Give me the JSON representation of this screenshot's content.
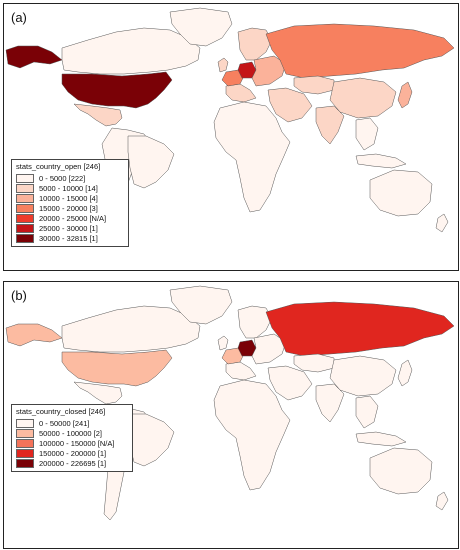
{
  "maps": [
    {
      "label": "(a)",
      "legend_title": "stats_country_open [246]",
      "legend": [
        {
          "label": "0 - 5000 [222]",
          "color": "#fff5f0"
        },
        {
          "label": "5000 - 10000 [14]",
          "color": "#fcd6c6"
        },
        {
          "label": "10000 - 15000 [4]",
          "color": "#fbb29a"
        },
        {
          "label": "15000 - 20000 [3]",
          "color": "#f7805f"
        },
        {
          "label": "20000 - 25000 [N/A]",
          "color": "#ee3b2b"
        },
        {
          "label": "25000 - 30000 [1]",
          "color": "#c41518"
        },
        {
          "label": "30000 - 32815 [1]",
          "color": "#7a0106"
        }
      ],
      "countries": {
        "usa": "#7a0106",
        "canada": "#fff5f0",
        "alaska": "#7a0106",
        "mexico": "#fcd6c6",
        "south_america": "#fff5f0",
        "brazil": "#fff5f0",
        "greenland": "#fff5f0",
        "uk": "#fcd6c6",
        "scandinavia": "#fcd6c6",
        "germany": "#c41518",
        "france": "#f7805f",
        "west_europe": "#fcd6c6",
        "east_europe": "#fbb29a",
        "russia": "#f7805f",
        "middle_east": "#fcd6c6",
        "africa": "#fff5f0",
        "kazakhstan": "#fcd6c6",
        "china": "#fcd6c6",
        "india": "#fcd6c6",
        "southeast_asia": "#fff5f0",
        "japan": "#fbb29a",
        "indonesia": "#fff5f0",
        "australia": "#fff5f0",
        "new_zealand": "#fff5f0"
      }
    },
    {
      "label": "(b)",
      "legend_title": "stats_country_closed [246]",
      "legend": [
        {
          "label": "0 - 50000 [241]",
          "color": "#fff5f0"
        },
        {
          "label": "50000 - 100000 [2]",
          "color": "#fcbba1"
        },
        {
          "label": "100000 - 150000 [N/A]",
          "color": "#f4735a"
        },
        {
          "label": "150000 - 200000 [1]",
          "color": "#e0261f"
        },
        {
          "label": "200000 - 226695 [1]",
          "color": "#7a0106"
        }
      ],
      "countries": {
        "usa": "#fcbba1",
        "canada": "#fff5f0",
        "alaska": "#fcbba1",
        "mexico": "#fff5f0",
        "south_america": "#fff5f0",
        "brazil": "#fff5f0",
        "greenland": "#fff5f0",
        "uk": "#fff5f0",
        "scandinavia": "#fff5f0",
        "germany": "#7a0106",
        "france": "#fcbba1",
        "west_europe": "#fff5f0",
        "east_europe": "#fff5f0",
        "russia": "#e0261f",
        "middle_east": "#fff5f0",
        "africa": "#fff5f0",
        "kazakhstan": "#fff5f0",
        "china": "#fff5f0",
        "india": "#fff5f0",
        "southeast_asia": "#fff5f0",
        "japan": "#fff5f0",
        "indonesia": "#fff5f0",
        "australia": "#fff5f0",
        "new_zealand": "#fff5f0"
      }
    }
  ]
}
